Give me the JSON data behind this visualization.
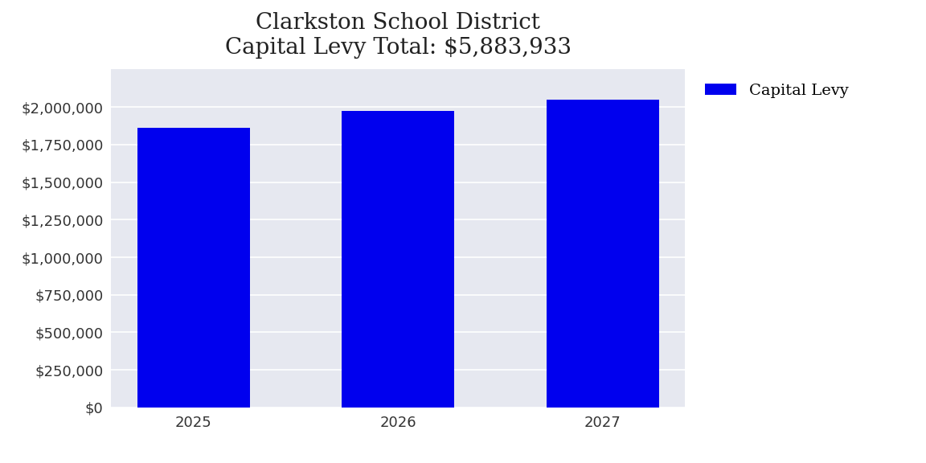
{
  "title_line1": "Clarkston School District",
  "title_line2": "Capital Levy Total: $5,883,933",
  "categories": [
    "2025",
    "2026",
    "2027"
  ],
  "values": [
    1862000,
    1971933,
    2050000
  ],
  "bar_color": "#0000EE",
  "legend_label": "Capital Levy",
  "plot_bg_color": "#E6E8F0",
  "fig_bg_color": "#FFFFFF",
  "ylim": [
    0,
    2250000
  ],
  "yticks": [
    0,
    250000,
    500000,
    750000,
    1000000,
    1250000,
    1500000,
    1750000,
    2000000
  ],
  "title_fontsize": 20,
  "tick_fontsize": 13,
  "legend_fontsize": 14,
  "bar_width": 0.55
}
